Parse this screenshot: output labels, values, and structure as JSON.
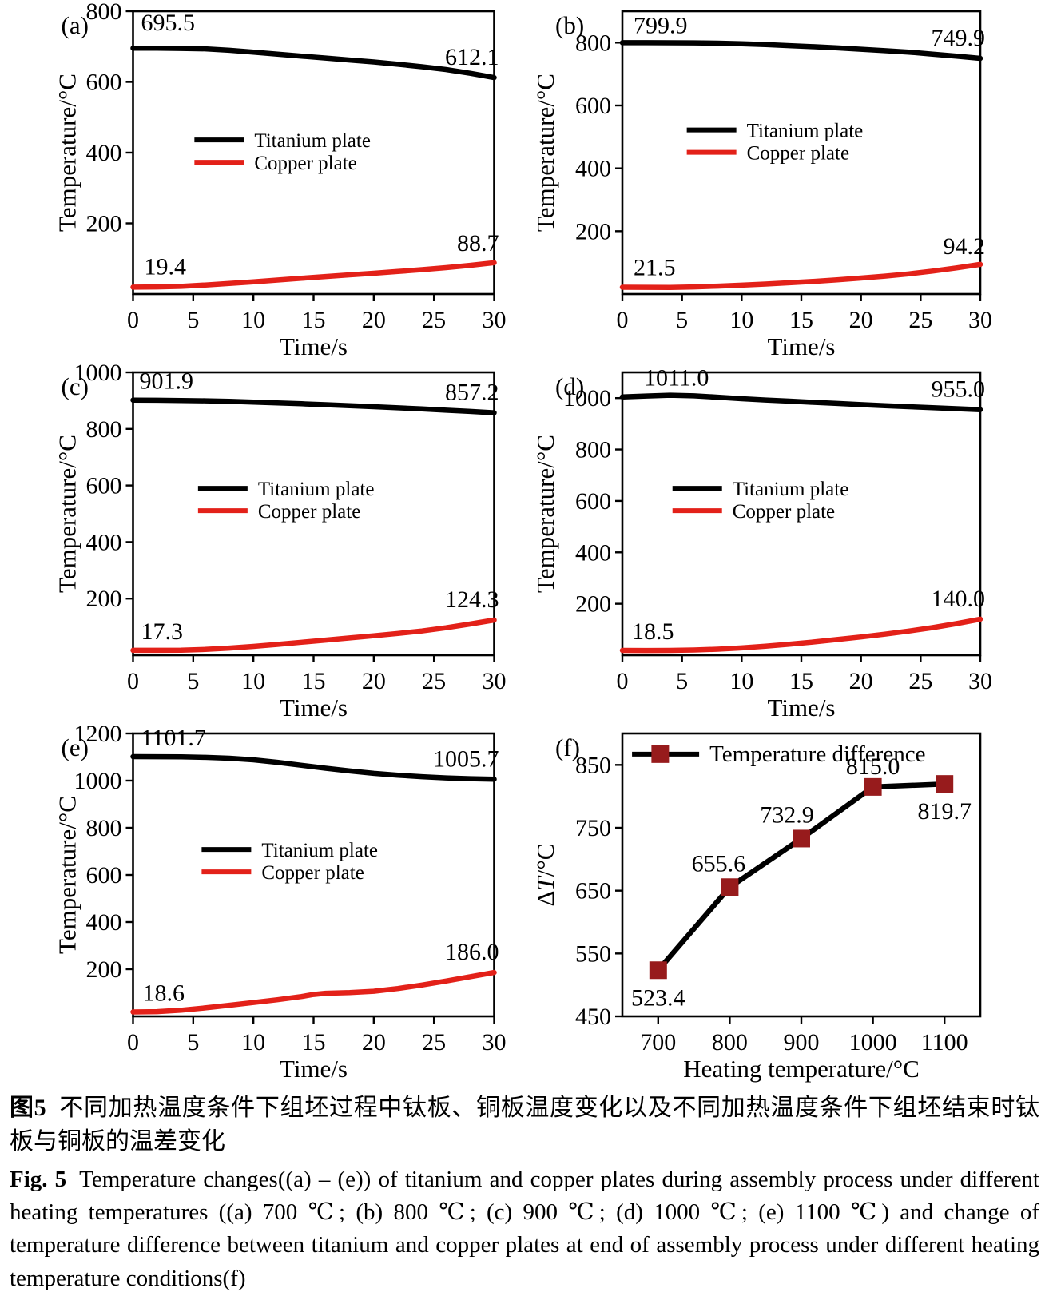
{
  "figure_title": "Fig. 5",
  "accent_colors": {
    "titanium_line": "#000000",
    "copper_line": "#e32119",
    "difference_marker": "#971b1c"
  },
  "chart_data": [
    {
      "id": "a",
      "type": "line",
      "tag": "(a)",
      "xlabel": "Time/s",
      "ylabel": [
        [
          "Temperature/°C",
          false
        ]
      ],
      "xlim": [
        0,
        30
      ],
      "xticks": [
        0,
        5,
        10,
        15,
        20,
        25,
        30
      ],
      "ylim": [
        0,
        800
      ],
      "yticks": [
        200,
        400,
        600,
        800
      ],
      "layout": {
        "ml": 166,
        "mr": 38,
        "tag_x": 76,
        "ylabel_x": 94
      },
      "legend": {
        "x": 0.17,
        "y": 0.455,
        "row_gap": 28,
        "line_len": 62,
        "font": 25,
        "items": [
          {
            "label": "Titanium plate",
            "color": "#000000"
          },
          {
            "label": "Copper plate",
            "color": "#e32119"
          }
        ]
      },
      "series": [
        {
          "name": "Titanium plate",
          "color": "#000000",
          "x": [
            0,
            2,
            4,
            6,
            8,
            10,
            12,
            14,
            16,
            18,
            20,
            22,
            24,
            26,
            28,
            30
          ],
          "y": [
            695.5,
            695.3,
            694.8,
            693.6,
            689.5,
            684,
            678.5,
            673,
            667.5,
            662,
            656.5,
            650,
            643,
            635,
            624.5,
            612.1
          ],
          "labels": [
            {
              "text": "695.5",
              "at": "start",
              "dx": 10,
              "dy": -22,
              "anchor": "start"
            },
            {
              "text": "612.1",
              "at": "end",
              "dx": 6,
              "dy": -16,
              "anchor": "end"
            }
          ]
        },
        {
          "name": "Copper plate",
          "color": "#e32119",
          "x": [
            0,
            2,
            4,
            6,
            8,
            10,
            12,
            14,
            16,
            18,
            20,
            22,
            24,
            26,
            28,
            30
          ],
          "y": [
            19.4,
            20.2,
            21.8,
            25.5,
            29.8,
            34.5,
            39.5,
            44.5,
            49.5,
            54.2,
            58.8,
            63.8,
            69,
            74.5,
            81.2,
            88.7
          ],
          "labels": [
            {
              "text": "19.4",
              "at": "start",
              "dx": 14,
              "dy": -16,
              "anchor": "start"
            },
            {
              "text": "88.7",
              "at": "end",
              "dx": 6,
              "dy": -15,
              "anchor": "end"
            }
          ]
        }
      ]
    },
    {
      "id": "b",
      "type": "line",
      "tag": "(b)",
      "xlabel": "Time/s",
      "ylabel": [
        [
          "Temperature/°C",
          false
        ]
      ],
      "xlim": [
        0,
        30
      ],
      "xticks": [
        0,
        5,
        10,
        15,
        20,
        25,
        30
      ],
      "ylim": [
        0,
        900
      ],
      "yticks": [
        200,
        400,
        600,
        800
      ],
      "layout": {
        "ml": 122,
        "mr": 86,
        "tag_x": 38,
        "ylabel_x": 36
      },
      "legend": {
        "x": 0.18,
        "y": 0.42,
        "row_gap": 28,
        "line_len": 62,
        "font": 25,
        "items": [
          {
            "label": "Titanium plate",
            "color": "#000000"
          },
          {
            "label": "Copper plate",
            "color": "#e32119"
          }
        ]
      },
      "series": [
        {
          "name": "Titanium plate",
          "color": "#000000",
          "x": [
            0,
            2,
            4,
            6,
            8,
            10,
            12,
            14,
            16,
            18,
            20,
            22,
            24,
            26,
            28,
            30
          ],
          "y": [
            799.9,
            799.9,
            799.7,
            799.2,
            798.2,
            796.5,
            793.8,
            790.5,
            787,
            783.2,
            779,
            774.5,
            769.8,
            763.5,
            756.8,
            749.9
          ],
          "labels": [
            {
              "text": "799.9",
              "at": "start",
              "dx": 14,
              "dy": -12,
              "anchor": "start"
            },
            {
              "text": "749.9",
              "at": "end",
              "dx": 6,
              "dy": -16,
              "anchor": "end"
            }
          ]
        },
        {
          "name": "Copper plate",
          "color": "#e32119",
          "x": [
            0,
            2,
            4,
            6,
            8,
            10,
            12,
            14,
            16,
            18,
            20,
            22,
            24,
            26,
            28,
            30
          ],
          "y": [
            21.5,
            21.3,
            21.2,
            22.6,
            25.2,
            28.3,
            31.8,
            35.8,
            40.2,
            45.2,
            50.8,
            57,
            64,
            73,
            83.2,
            94.2
          ],
          "labels": [
            {
              "text": "21.5",
              "at": "start",
              "dx": 14,
              "dy": -15,
              "anchor": "start"
            },
            {
              "text": "94.2",
              "at": "end",
              "dx": 6,
              "dy": -13,
              "anchor": "end"
            }
          ]
        }
      ]
    },
    {
      "id": "c",
      "type": "line",
      "tag": "(c)",
      "xlabel": "Time/s",
      "ylabel": [
        [
          "Temperature/°C",
          false
        ]
      ],
      "xlim": [
        0,
        30
      ],
      "xticks": [
        0,
        5,
        10,
        15,
        20,
        25,
        30
      ],
      "ylim": [
        0,
        1000
      ],
      "yticks": [
        200,
        400,
        600,
        800,
        1000
      ],
      "layout": {
        "ml": 166,
        "mr": 38,
        "tag_x": 76,
        "ylabel_x": 94
      },
      "legend": {
        "x": 0.18,
        "y": 0.41,
        "row_gap": 28,
        "line_len": 62,
        "font": 25,
        "items": [
          {
            "label": "Titanium plate",
            "color": "#000000"
          },
          {
            "label": "Copper plate",
            "color": "#e32119"
          }
        ]
      },
      "series": [
        {
          "name": "Titanium plate",
          "color": "#000000",
          "x": [
            0,
            2,
            4,
            6,
            8,
            10,
            12,
            14,
            16,
            18,
            20,
            22,
            24,
            26,
            28,
            30
          ],
          "y": [
            901.9,
            901.4,
            900.6,
            899.3,
            897.4,
            895,
            892.2,
            889,
            885.6,
            882,
            878.4,
            874.6,
            870.6,
            866.2,
            861.8,
            857.2
          ],
          "labels": [
            {
              "text": "901.9",
              "at": "start",
              "dx": 8,
              "dy": -14,
              "anchor": "start"
            },
            {
              "text": "857.2",
              "at": "end",
              "dx": 6,
              "dy": -16,
              "anchor": "end"
            }
          ]
        },
        {
          "name": "Copper plate",
          "color": "#e32119",
          "x": [
            0,
            2,
            4,
            6,
            8,
            10,
            12,
            14,
            16,
            18,
            20,
            22,
            24,
            26,
            28,
            30
          ],
          "y": [
            17.3,
            17.2,
            17.6,
            20.2,
            25,
            31.2,
            38.2,
            45.8,
            53.4,
            61,
            68.6,
            76.8,
            85.6,
            97,
            110.2,
            124.3
          ],
          "labels": [
            {
              "text": "17.3",
              "at": "start",
              "dx": 10,
              "dy": -14,
              "anchor": "start"
            },
            {
              "text": "124.3",
              "at": "end",
              "dx": 6,
              "dy": -16,
              "anchor": "end"
            }
          ]
        }
      ]
    },
    {
      "id": "d",
      "type": "line",
      "tag": "(d)",
      "xlabel": "Time/s",
      "ylabel": [
        [
          "Temperature/°C",
          false
        ]
      ],
      "xlim": [
        0,
        30
      ],
      "xticks": [
        0,
        5,
        10,
        15,
        20,
        25,
        30
      ],
      "ylim": [
        0,
        1100
      ],
      "yticks": [
        200,
        400,
        600,
        800,
        1000
      ],
      "layout": {
        "ml": 122,
        "mr": 86,
        "tag_x": 38,
        "ylabel_x": 36
      },
      "legend": {
        "x": 0.14,
        "y": 0.41,
        "row_gap": 28,
        "line_len": 62,
        "font": 25,
        "items": [
          {
            "label": "Titanium plate",
            "color": "#000000"
          },
          {
            "label": "Copper plate",
            "color": "#e32119"
          }
        ]
      },
      "series": [
        {
          "name": "Titanium plate",
          "color": "#000000",
          "x": [
            0,
            2,
            4,
            6,
            8,
            10,
            12,
            14,
            16,
            18,
            20,
            22,
            24,
            26,
            28,
            30
          ],
          "y": [
            1004.5,
            1008,
            1011,
            1008.5,
            1003.5,
            997.5,
            992.5,
            988,
            983.5,
            979,
            974.5,
            970.5,
            966.5,
            962.5,
            958.5,
            955
          ],
          "labels": [
            {
              "text": "1011.0",
              "index": 2,
              "dx": 8,
              "dy": -12,
              "anchor": "middle"
            },
            {
              "text": "955.0",
              "at": "end",
              "dx": 6,
              "dy": -16,
              "anchor": "end"
            }
          ]
        },
        {
          "name": "Copper plate",
          "color": "#e32119",
          "x": [
            0,
            2,
            4,
            6,
            8,
            10,
            12,
            14,
            16,
            18,
            20,
            22,
            24,
            26,
            28,
            30
          ],
          "y": [
            18.5,
            18.4,
            18.7,
            20.2,
            23.2,
            28.2,
            34.8,
            42.6,
            51.4,
            60.8,
            70.8,
            81.8,
            93.8,
            107.2,
            122.8,
            140
          ],
          "labels": [
            {
              "text": "18.5",
              "at": "start",
              "dx": 12,
              "dy": -14,
              "anchor": "start"
            },
            {
              "text": "140.0",
              "at": "end",
              "dx": 6,
              "dy": -16,
              "anchor": "end"
            }
          ]
        }
      ]
    },
    {
      "id": "e",
      "type": "line",
      "tag": "(e)",
      "xlabel": "Time/s",
      "ylabel": [
        [
          "Temperature/°C",
          false
        ]
      ],
      "xlim": [
        0,
        30
      ],
      "xticks": [
        0,
        5,
        10,
        15,
        20,
        25,
        30
      ],
      "ylim": [
        0,
        1200
      ],
      "yticks": [
        200,
        400,
        600,
        800,
        1000,
        1200
      ],
      "layout": {
        "ml": 166,
        "mr": 38,
        "tag_x": 76,
        "ylabel_x": 94
      },
      "legend": {
        "x": 0.19,
        "y": 0.41,
        "row_gap": 28,
        "line_len": 62,
        "font": 25,
        "items": [
          {
            "label": "Titanium plate",
            "color": "#000000"
          },
          {
            "label": "Copper plate",
            "color": "#e32119"
          }
        ]
      },
      "series": [
        {
          "name": "Titanium plate",
          "color": "#000000",
          "x": [
            0,
            2,
            4,
            6,
            8,
            10,
            12,
            14,
            16,
            18,
            20,
            22,
            24,
            26,
            28,
            30
          ],
          "y": [
            1101.7,
            1101.4,
            1100.6,
            1098.8,
            1095,
            1088,
            1077.5,
            1065,
            1052.5,
            1041,
            1031,
            1023,
            1016.5,
            1011.5,
            1008,
            1005.7
          ],
          "labels": [
            {
              "text": "1101.7",
              "at": "start",
              "dx": 10,
              "dy": -14,
              "anchor": "start"
            },
            {
              "text": "1005.7",
              "at": "end",
              "dx": 6,
              "dy": -16,
              "anchor": "end"
            }
          ]
        },
        {
          "name": "Copper plate",
          "color": "#e32119",
          "x": [
            0,
            2,
            4,
            6,
            8,
            10,
            12,
            14,
            15,
            16,
            18,
            20,
            22,
            24,
            26,
            28,
            30
          ],
          "y": [
            18.6,
            20,
            26,
            36,
            47,
            58.5,
            70.5,
            84,
            93,
            98,
            101,
            106.5,
            118,
            133,
            150,
            168,
            186
          ],
          "labels": [
            {
              "text": "18.6",
              "at": "start",
              "dx": 12,
              "dy": -14,
              "anchor": "start"
            },
            {
              "text": "186.0",
              "at": "end",
              "dx": 6,
              "dy": -16,
              "anchor": "end"
            }
          ]
        }
      ]
    },
    {
      "id": "f",
      "type": "line",
      "tag": "(f)",
      "xlabel": "Heating temperature/°C",
      "ylabel": [
        [
          "Δ",
          false
        ],
        [
          "T",
          true
        ],
        [
          "/°C",
          false
        ]
      ],
      "xlim": [
        650,
        1150
      ],
      "xticks": [
        700,
        800,
        900,
        1000,
        1100
      ],
      "ylim": [
        450,
        900
      ],
      "yticks": [
        450,
        550,
        650,
        750,
        850
      ],
      "layout": {
        "ml": 122,
        "mr": 86,
        "tag_x": 38,
        "ylabel_x": 36
      },
      "legend": {
        "x": 0.027,
        "y": 0.073,
        "row_gap": 28,
        "line_len": 84,
        "font": 29,
        "items": [
          {
            "label": "Temperature difference",
            "color": "#000000",
            "marker": "#971b1c"
          }
        ]
      },
      "series": [
        {
          "name": "Temperature difference",
          "color": "#000000",
          "marker": "#971b1c",
          "x": [
            700,
            800,
            900,
            1000,
            1100
          ],
          "y": [
            523.4,
            655.6,
            732.9,
            815.0,
            819.7
          ],
          "labels": [
            {
              "text": "523.4",
              "index": 0,
              "dx": 0,
              "dy": 44,
              "anchor": "middle"
            },
            {
              "text": "655.6",
              "index": 1,
              "dx": -14,
              "dy": -20,
              "anchor": "middle"
            },
            {
              "text": "732.9",
              "index": 2,
              "dx": -18,
              "dy": -20,
              "anchor": "middle"
            },
            {
              "text": "815.0",
              "index": 3,
              "dx": 0,
              "dy": -16,
              "anchor": "middle"
            },
            {
              "text": "819.7",
              "index": 4,
              "dx": 0,
              "dy": 44,
              "anchor": "middle"
            }
          ]
        }
      ]
    }
  ],
  "caption": {
    "zh_label": "图5",
    "zh_text": "不同加热温度条件下组坯过程中钛板、铜板温度变化以及不同加热温度条件下组坯结束时钛板与铜板的温差变化",
    "en_label": "Fig. 5",
    "en_text": "Temperature changes((a) – (e)) of titanium and copper plates during assembly process under different heating temperatures ((a) 700 ℃; (b) 800 ℃; (c) 900 ℃; (d) 1000 ℃; (e) 1100 ℃) and change of temperature difference between titanium and copper plates at end of assembly process under different heating temperature conditions(f)"
  }
}
